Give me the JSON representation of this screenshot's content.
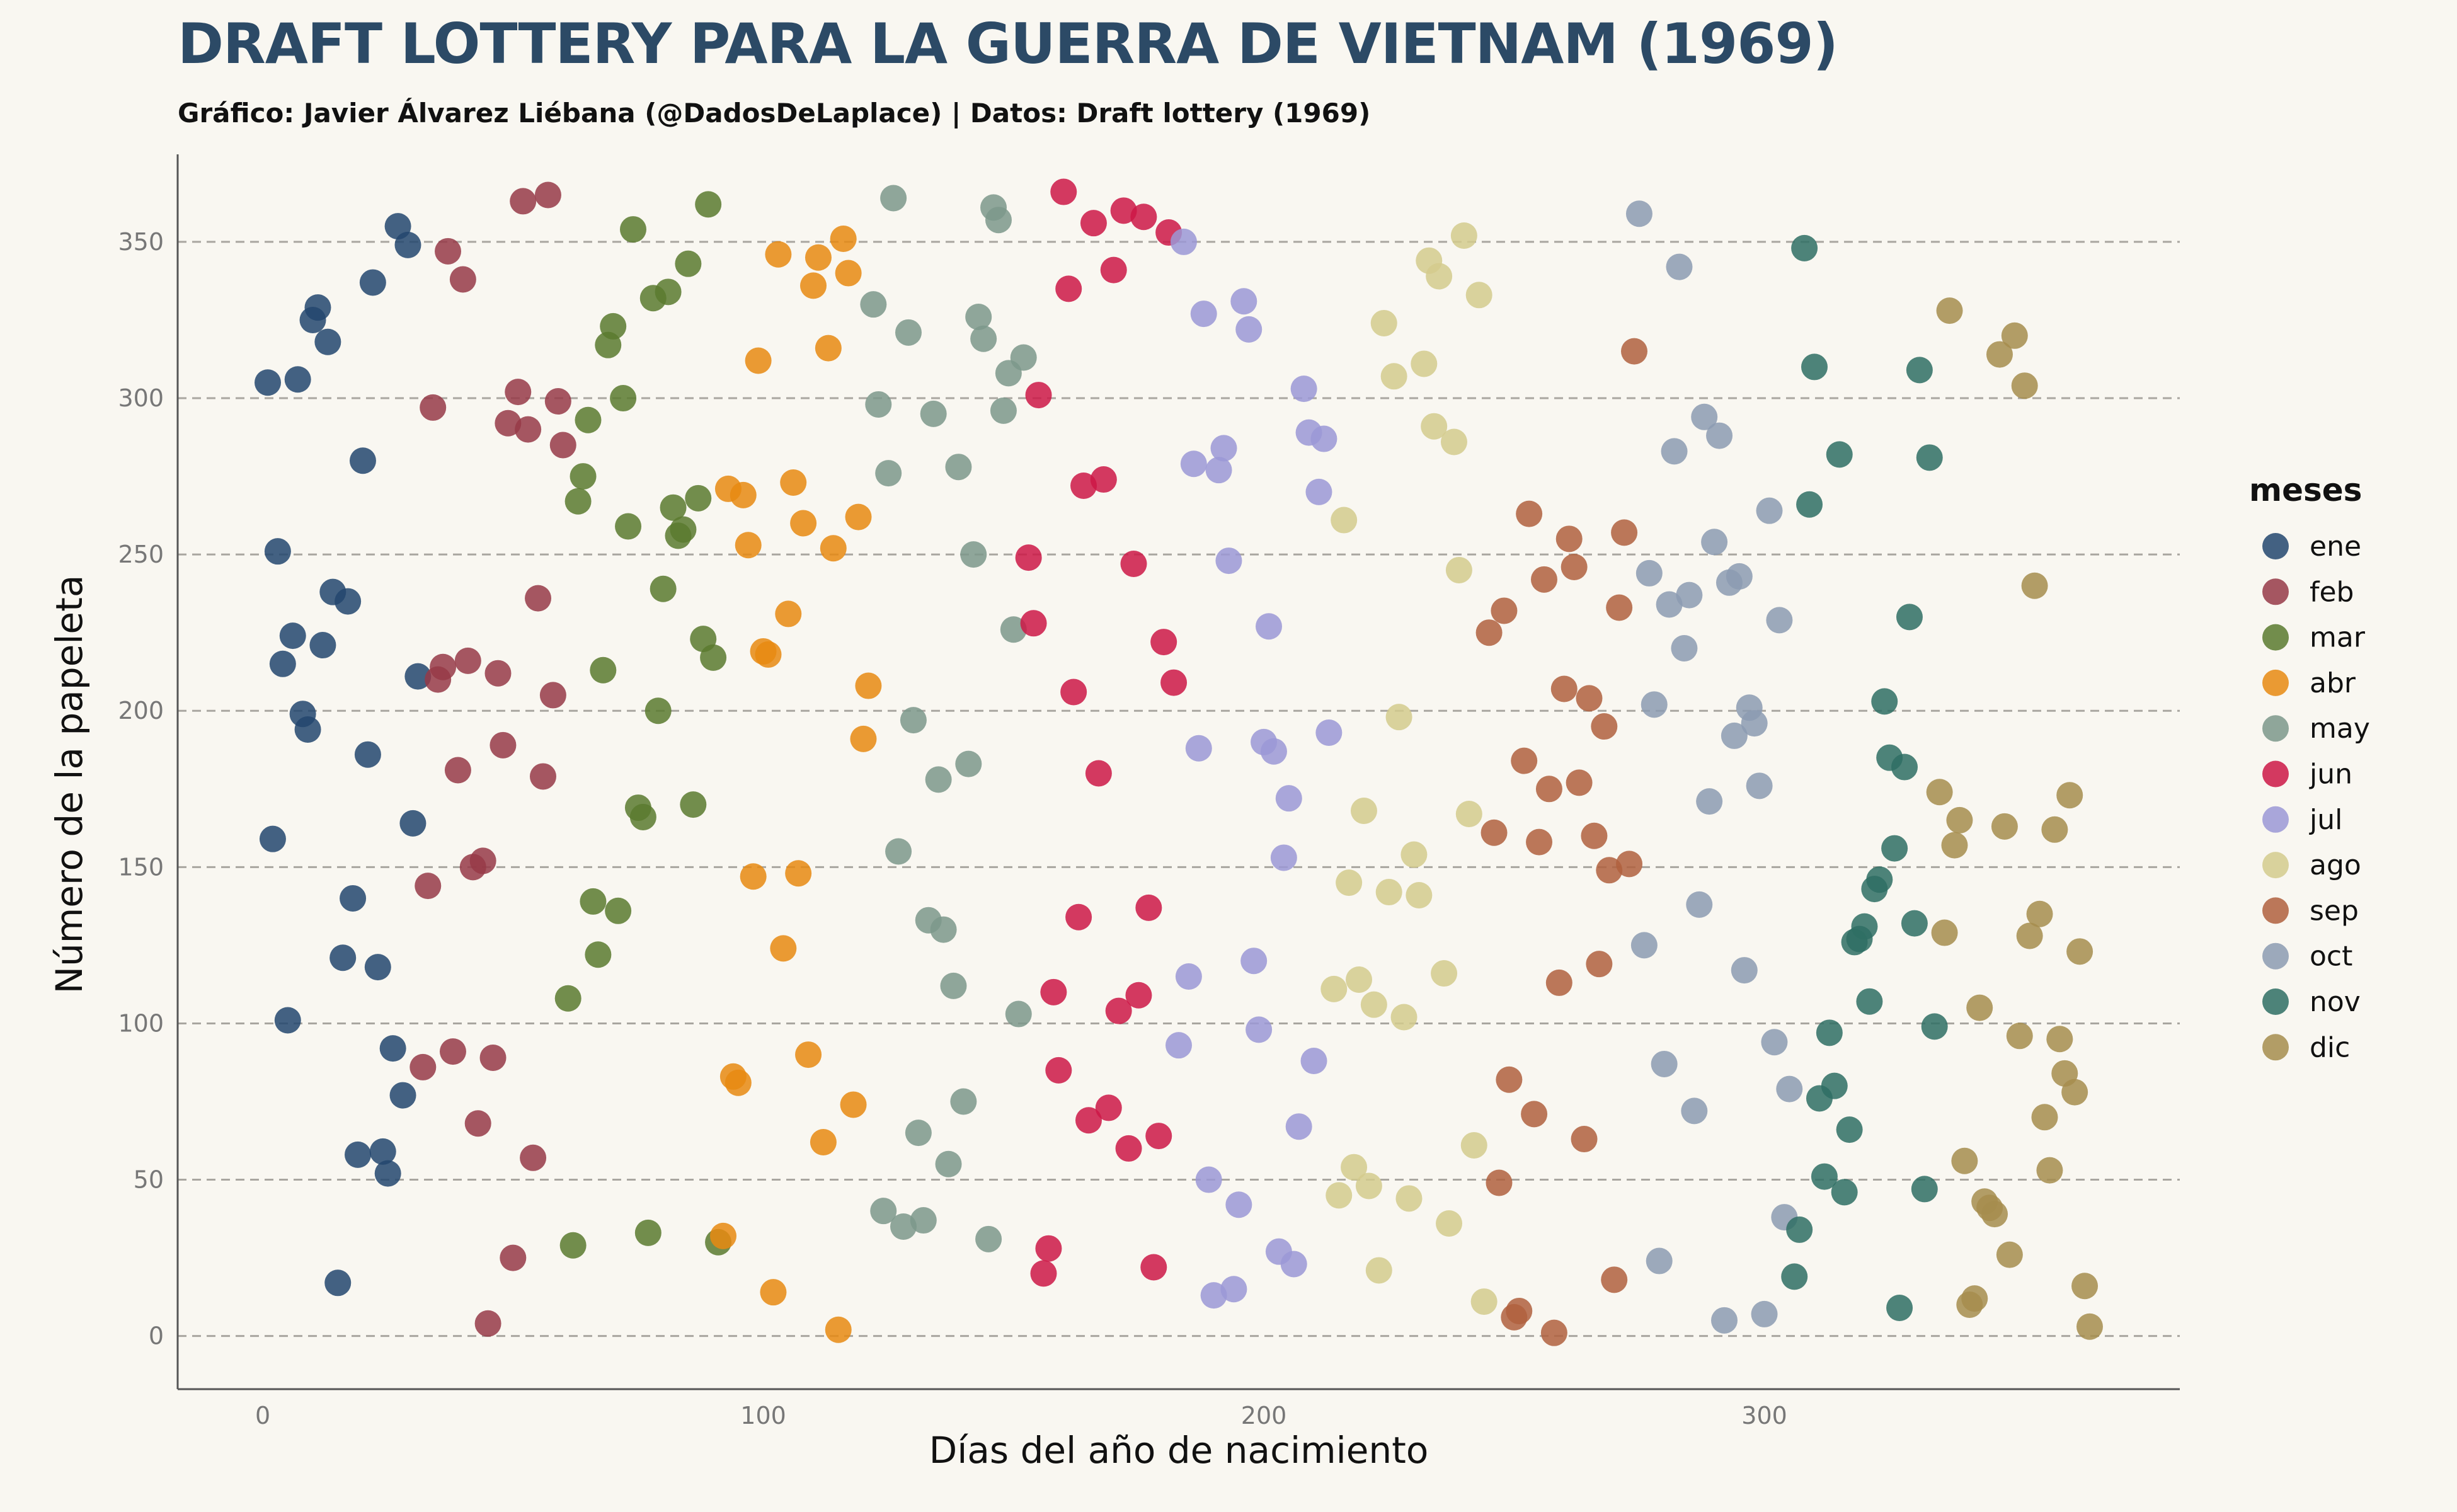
{
  "title": "DRAFT LOTTERY PARA LA GUERRA DE VIETNAM (1969)",
  "subtitle": "Gráfico: Javier Álvarez Liébana (@DadosDeLaplace) | Datos: Draft lottery (1969)",
  "chart_data": {
    "type": "scatter",
    "xlabel": "Días del año de nacimiento",
    "ylabel": "Número de la papeleta",
    "xlim": [
      -17,
      383
    ],
    "ylim": [
      -17,
      378
    ],
    "xticks": [
      0,
      100,
      200,
      300
    ],
    "yticks": [
      0,
      50,
      100,
      150,
      200,
      250,
      300,
      350
    ],
    "grid": "horizontal dashed",
    "legend": {
      "title": "meses",
      "placement": "right",
      "entries": [
        "ene",
        "feb",
        "mar",
        "abr",
        "may",
        "jun",
        "jul",
        "ago",
        "sep",
        "oct",
        "nov",
        "dic"
      ]
    },
    "colors": {
      "ene": "#23466f",
      "feb": "#963a48",
      "mar": "#5b7a2f",
      "abr": "#e88a12",
      "may": "#7d988b",
      "jun": "#cc1846",
      "jul": "#9b98d6",
      "ago": "#d3cb8d",
      "sep": "#b0603e",
      "oct": "#8c9bb2",
      "nov": "#2f6e64",
      "dic": "#a68d4d"
    },
    "series": [
      {
        "name": "ene",
        "x": [
          1,
          2,
          3,
          4,
          5,
          6,
          7,
          8,
          9,
          10,
          11,
          12,
          13,
          14,
          15,
          16,
          17,
          18,
          19,
          20,
          21,
          22,
          23,
          24,
          25,
          26,
          27,
          28,
          29,
          30,
          31
        ],
        "y": [
          305,
          159,
          251,
          215,
          101,
          224,
          306,
          199,
          194,
          325,
          329,
          221,
          318,
          238,
          17,
          121,
          235,
          140,
          58,
          280,
          186,
          337,
          118,
          59,
          52,
          92,
          355,
          77,
          349,
          164,
          211
        ]
      },
      {
        "name": "feb",
        "x": [
          32,
          33,
          34,
          35,
          36,
          37,
          38,
          39,
          40,
          41,
          42,
          43,
          44,
          45,
          46,
          47,
          48,
          49,
          50,
          51,
          52,
          53,
          54,
          55,
          56,
          57,
          58,
          59,
          60
        ],
        "y": [
          86,
          144,
          297,
          210,
          214,
          347,
          91,
          181,
          338,
          216,
          150,
          68,
          152,
          4,
          89,
          212,
          189,
          292,
          25,
          302,
          363,
          290,
          57,
          236,
          179,
          365,
          205,
          299,
          285
        ]
      },
      {
        "name": "mar",
        "x": [
          61,
          62,
          63,
          64,
          65,
          66,
          67,
          68,
          69,
          70,
          71,
          72,
          73,
          74,
          75,
          76,
          77,
          78,
          79,
          80,
          81,
          82,
          83,
          84,
          85,
          86,
          87,
          88,
          89,
          90,
          91
        ],
        "y": [
          108,
          29,
          267,
          275,
          293,
          139,
          122,
          213,
          317,
          323,
          136,
          300,
          259,
          354,
          169,
          166,
          33,
          332,
          200,
          239,
          334,
          265,
          256,
          258,
          343,
          170,
          268,
          223,
          362,
          217,
          30
        ]
      },
      {
        "name": "abr",
        "x": [
          92,
          93,
          94,
          95,
          96,
          97,
          98,
          99,
          100,
          101,
          102,
          103,
          104,
          105,
          106,
          107,
          108,
          109,
          110,
          111,
          112,
          113,
          114,
          115,
          116,
          117,
          118,
          119,
          120,
          121
        ],
        "y": [
          32,
          271,
          83,
          81,
          269,
          253,
          147,
          312,
          219,
          218,
          14,
          346,
          124,
          231,
          273,
          148,
          260,
          90,
          336,
          345,
          62,
          316,
          252,
          2,
          351,
          340,
          74,
          262,
          191,
          208
        ]
      },
      {
        "name": "may",
        "x": [
          122,
          123,
          124,
          125,
          126,
          127,
          128,
          129,
          130,
          131,
          132,
          133,
          134,
          135,
          136,
          137,
          138,
          139,
          140,
          141,
          142,
          143,
          144,
          145,
          146,
          147,
          148,
          149,
          150,
          151,
          152
        ],
        "y": [
          330,
          298,
          40,
          276,
          364,
          155,
          35,
          321,
          197,
          65,
          37,
          133,
          295,
          178,
          130,
          55,
          112,
          278,
          75,
          183,
          250,
          326,
          319,
          31,
          361,
          357,
          296,
          308,
          226,
          103,
          313
        ]
      },
      {
        "name": "jun",
        "x": [
          153,
          154,
          155,
          156,
          157,
          158,
          159,
          160,
          161,
          162,
          163,
          164,
          165,
          166,
          167,
          168,
          169,
          170,
          171,
          172,
          173,
          174,
          175,
          176,
          177,
          178,
          179,
          180,
          181,
          182
        ],
        "y": [
          249,
          228,
          301,
          20,
          28,
          110,
          85,
          366,
          335,
          206,
          134,
          272,
          69,
          356,
          180,
          274,
          73,
          341,
          104,
          360,
          60,
          247,
          109,
          358,
          137,
          22,
          64,
          222,
          353,
          209
        ]
      },
      {
        "name": "jul",
        "x": [
          183,
          184,
          185,
          186,
          187,
          188,
          189,
          190,
          191,
          192,
          193,
          194,
          195,
          196,
          197,
          198,
          199,
          200,
          201,
          202,
          203,
          204,
          205,
          206,
          207,
          208,
          209,
          210,
          211,
          212,
          213
        ],
        "y": [
          93,
          350,
          115,
          279,
          188,
          327,
          50,
          13,
          277,
          284,
          248,
          15,
          42,
          331,
          322,
          120,
          98,
          190,
          227,
          187,
          27,
          153,
          172,
          23,
          67,
          303,
          289,
          88,
          270,
          287,
          193
        ]
      },
      {
        "name": "ago",
        "x": [
          214,
          215,
          216,
          217,
          218,
          219,
          220,
          221,
          222,
          223,
          224,
          225,
          226,
          227,
          228,
          229,
          230,
          231,
          232,
          233,
          234,
          235,
          236,
          237,
          238,
          239,
          240,
          241,
          242,
          243,
          244
        ],
        "y": [
          111,
          45,
          261,
          145,
          54,
          114,
          168,
          48,
          106,
          21,
          324,
          142,
          307,
          198,
          102,
          44,
          154,
          141,
          311,
          344,
          291,
          339,
          116,
          36,
          286,
          245,
          352,
          167,
          61,
          333,
          11
        ]
      },
      {
        "name": "sep",
        "x": [
          245,
          246,
          247,
          248,
          249,
          250,
          251,
          252,
          253,
          254,
          255,
          256,
          257,
          258,
          259,
          260,
          261,
          262,
          263,
          264,
          265,
          266,
          267,
          268,
          269,
          270,
          271,
          272,
          273,
          274
        ],
        "y": [
          225,
          161,
          49,
          232,
          82,
          6,
          8,
          184,
          263,
          71,
          158,
          242,
          175,
          1,
          113,
          207,
          255,
          246,
          177,
          63,
          204,
          160,
          119,
          195,
          149,
          18,
          233,
          257,
          151,
          315
        ]
      },
      {
        "name": "oct",
        "x": [
          275,
          276,
          277,
          278,
          279,
          280,
          281,
          282,
          283,
          284,
          285,
          286,
          287,
          288,
          289,
          290,
          291,
          292,
          293,
          294,
          295,
          296,
          297,
          298,
          299,
          300,
          301,
          302,
          303,
          304,
          305
        ],
        "y": [
          359,
          125,
          244,
          202,
          24,
          87,
          234,
          283,
          342,
          220,
          237,
          72,
          138,
          294,
          171,
          254,
          288,
          5,
          241,
          192,
          243,
          117,
          201,
          196,
          176,
          7,
          264,
          94,
          229,
          38,
          79
        ]
      },
      {
        "name": "nov",
        "x": [
          306,
          307,
          308,
          309,
          310,
          311,
          312,
          313,
          314,
          315,
          316,
          317,
          318,
          319,
          320,
          321,
          322,
          323,
          324,
          325,
          326,
          327,
          328,
          329,
          330,
          331,
          332,
          333,
          334
        ],
        "y": [
          19,
          34,
          348,
          266,
          310,
          76,
          51,
          97,
          80,
          282,
          46,
          66,
          126,
          127,
          131,
          107,
          143,
          146,
          203,
          185,
          156,
          9,
          182,
          230,
          132,
          309,
          47,
          281,
          99
        ]
      },
      {
        "name": "dic",
        "x": [
          335,
          336,
          337,
          338,
          339,
          340,
          341,
          342,
          343,
          344,
          345,
          346,
          347,
          348,
          349,
          350,
          351,
          352,
          353,
          354,
          355,
          356,
          357,
          358,
          359,
          360,
          361,
          362,
          363,
          364,
          365
        ],
        "y": [
          174,
          129,
          328,
          157,
          165,
          56,
          10,
          12,
          105,
          43,
          41,
          39,
          314,
          163,
          26,
          320,
          96,
          304,
          128,
          240,
          135,
          70,
          53,
          162,
          95,
          84,
          173,
          78,
          123,
          16,
          3
        ]
      }
    ]
  }
}
